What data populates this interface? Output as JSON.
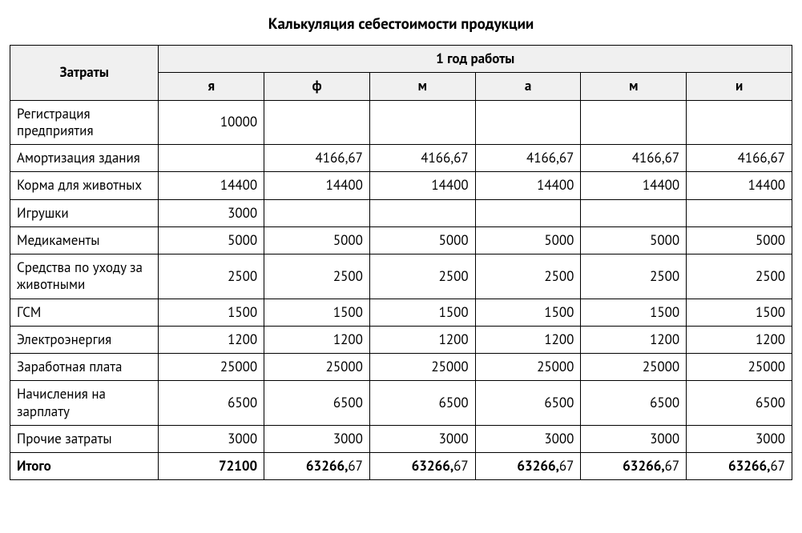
{
  "title": "Калькуляция себестоимости продукции",
  "header": {
    "costs": "Затраты",
    "year": "1 год работы",
    "months": [
      "я",
      "ф",
      "м",
      "а",
      "м",
      "и"
    ]
  },
  "rows": [
    {
      "label": "Регистрация предприятия",
      "values": [
        "10000",
        "",
        "",
        "",
        "",
        ""
      ]
    },
    {
      "label": "Амортизация здания",
      "values": [
        "",
        "4166,67",
        "4166,67",
        "4166,67",
        "4166,67",
        "4166,67"
      ]
    },
    {
      "label": "Корма для животных",
      "values": [
        "14400",
        "14400",
        "14400",
        "14400",
        "14400",
        "14400"
      ]
    },
    {
      "label": "Игрушки",
      "values": [
        "3000",
        "",
        "",
        "",
        "",
        ""
      ]
    },
    {
      "label": "Медикаменты",
      "values": [
        "5000",
        "5000",
        "5000",
        "5000",
        "5000",
        "5000"
      ]
    },
    {
      "label": "Средства по уходу за животными",
      "values": [
        "2500",
        "2500",
        "2500",
        "2500",
        "2500",
        "2500"
      ]
    },
    {
      "label": "ГСМ",
      "values": [
        "1500",
        "1500",
        "1500",
        "1500",
        "1500",
        "1500"
      ]
    },
    {
      "label": "Электроэнергия",
      "values": [
        "1200",
        "1200",
        "1200",
        "1200",
        "1200",
        "1200"
      ]
    },
    {
      "label": "Заработная плата",
      "values": [
        "25000",
        "25000",
        "25000",
        "25000",
        "25000",
        "25000"
      ]
    },
    {
      "label": "Начисления на зарплату",
      "values": [
        "6500",
        "6500",
        "6500",
        "6500",
        "6500",
        "6500"
      ]
    },
    {
      "label": "Прочие затраты",
      "values": [
        "3000",
        "3000",
        "3000",
        "3000",
        "3000",
        "3000"
      ]
    }
  ],
  "total": {
    "label": "Итого",
    "values": [
      "72100",
      "63266,67",
      "63266,67",
      "63266,67",
      "63266,67",
      "63266,67"
    ]
  },
  "colors": {
    "background": "#ffffff",
    "text": "#000000",
    "border": "#000000",
    "header_bg": "#f0f0f0"
  },
  "typography": {
    "body_fontsize": 17,
    "title_fontsize": 19
  }
}
